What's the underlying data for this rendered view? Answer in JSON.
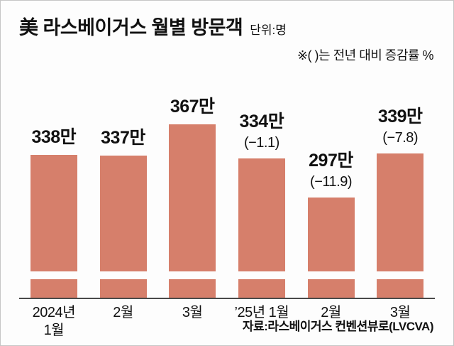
{
  "header": {
    "title": "美 라스베이거스 월별 방문객",
    "unit": "단위:명"
  },
  "note": "※(  )는 전년 대비 증감률 %",
  "source": "자료:라스베이거스 컨벤션뷰로(LVCVA)",
  "chart_data": {
    "type": "bar",
    "title": "美 라스베이거스 월별 방문객",
    "unit": "만 명",
    "categories": [
      "2024년\n1월",
      "2월",
      "3월",
      "’25년 1월",
      "2월",
      "3월"
    ],
    "values": [
      338,
      337,
      367,
      334,
      297,
      339
    ],
    "value_labels": [
      "338만",
      "337만",
      "367만",
      "334만",
      "297만",
      "339만"
    ],
    "yoy_change_pct": [
      null,
      null,
      null,
      -1.1,
      -11.9,
      -7.8
    ],
    "change_labels": [
      "",
      "",
      "",
      "(−1.1)",
      "(−11.9)",
      "(−7.8)"
    ],
    "ylim": [
      200,
      380
    ],
    "axis_break": true,
    "bar_color": "#d67f6b",
    "grid": false,
    "legend": "none"
  }
}
